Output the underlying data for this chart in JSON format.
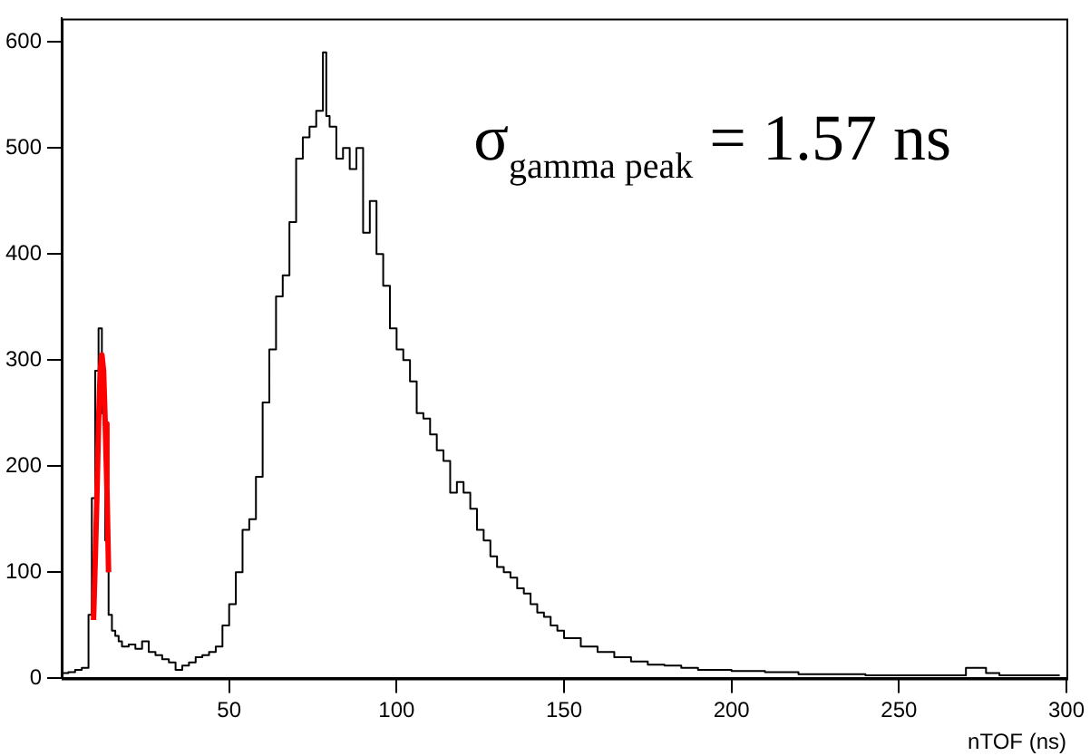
{
  "chart_data": {
    "type": "step",
    "xlabel": "nTOF (ns)",
    "annotations": [
      "σ$_{gamma peak}$ = 1.57 ns"
    ],
    "xlim": [
      0,
      300
    ],
    "ylim": [
      0,
      622
    ],
    "xticks": [
      50,
      100,
      150,
      200,
      250,
      300
    ],
    "yticks": [
      0,
      100,
      200,
      300,
      400,
      500,
      600
    ],
    "grid": false,
    "legend": false,
    "marker": "none",
    "line_style": "solid",
    "series": [
      {
        "type": "step",
        "color": "#000000",
        "x": [
          0,
          2,
          4,
          6,
          8,
          9,
          10,
          11,
          12,
          13,
          14,
          15,
          16,
          17,
          18,
          20,
          22,
          24,
          26,
          28,
          30,
          32,
          34,
          36,
          38,
          40,
          42,
          44,
          46,
          48,
          50,
          52,
          54,
          56,
          58,
          60,
          62,
          64,
          66,
          68,
          70,
          72,
          74,
          76,
          78,
          79,
          80,
          82,
          84,
          86,
          88,
          90,
          92,
          94,
          96,
          98,
          100,
          102,
          104,
          106,
          108,
          110,
          112,
          114,
          116,
          118,
          120,
          122,
          124,
          126,
          128,
          130,
          132,
          134,
          136,
          138,
          140,
          142,
          144,
          146,
          148,
          150,
          155,
          160,
          165,
          170,
          175,
          180,
          185,
          190,
          200,
          210,
          220,
          230,
          240,
          250,
          260,
          270,
          276,
          280,
          290,
          298
        ],
        "values": [
          3,
          5,
          6,
          8,
          10,
          60,
          170,
          290,
          330,
          250,
          130,
          60,
          45,
          40,
          35,
          30,
          32,
          28,
          35,
          25,
          22,
          18,
          15,
          8,
          12,
          15,
          20,
          22,
          25,
          30,
          50,
          70,
          100,
          140,
          150,
          190,
          260,
          310,
          360,
          380,
          430,
          490,
          510,
          520,
          535,
          590,
          530,
          520,
          490,
          500,
          480,
          500,
          420,
          450,
          400,
          370,
          330,
          310,
          300,
          280,
          250,
          245,
          230,
          215,
          205,
          175,
          185,
          175,
          160,
          140,
          130,
          115,
          105,
          100,
          95,
          85,
          80,
          70,
          62,
          58,
          50,
          45,
          38,
          30,
          25,
          20,
          16,
          13,
          12,
          10,
          8,
          7,
          6,
          4,
          4,
          3,
          3,
          3,
          10,
          5,
          3,
          3
        ]
      },
      {
        "type": "line",
        "color": "#ff0000",
        "x": [
          9.5,
          10,
          10.5,
          11,
          11.5,
          12,
          12.5,
          13,
          13.5,
          14
        ],
        "values": [
          55,
          110,
          170,
          240,
          290,
          305,
          290,
          240,
          180,
          100
        ]
      }
    ]
  }
}
